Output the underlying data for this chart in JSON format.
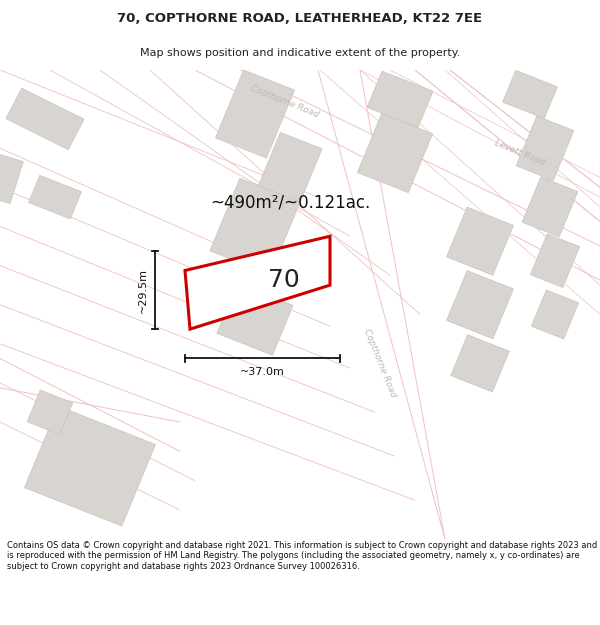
{
  "title_line1": "70, COPTHORNE ROAD, LEATHERHEAD, KT22 7EE",
  "title_line2": "Map shows position and indicative extent of the property.",
  "footer_text": "Contains OS data © Crown copyright and database right 2021. This information is subject to Crown copyright and database rights 2023 and is reproduced with the permission of HM Land Registry. The polygons (including the associated geometry, namely x, y co-ordinates) are subject to Crown copyright and database rights 2023 Ordnance Survey 100026316.",
  "area_label": "~490m²/~0.121ac.",
  "number_label": "70",
  "width_label": "~37.0m",
  "height_label": "~29.5m",
  "map_bg": "#f7f3f0",
  "building_fill": "#d8d4d0",
  "building_stroke": "#c8c4c0",
  "road_fill": "#ffffff",
  "road_line_color": "#f0c0c0",
  "highlight_fill": "#ffffff",
  "highlight_stroke": "#cc0000",
  "road_label_color": "#c0b8b4",
  "title_color": "#222222",
  "footer_color": "#111111",
  "dim_color": "#111111",
  "area_color": "#111111"
}
